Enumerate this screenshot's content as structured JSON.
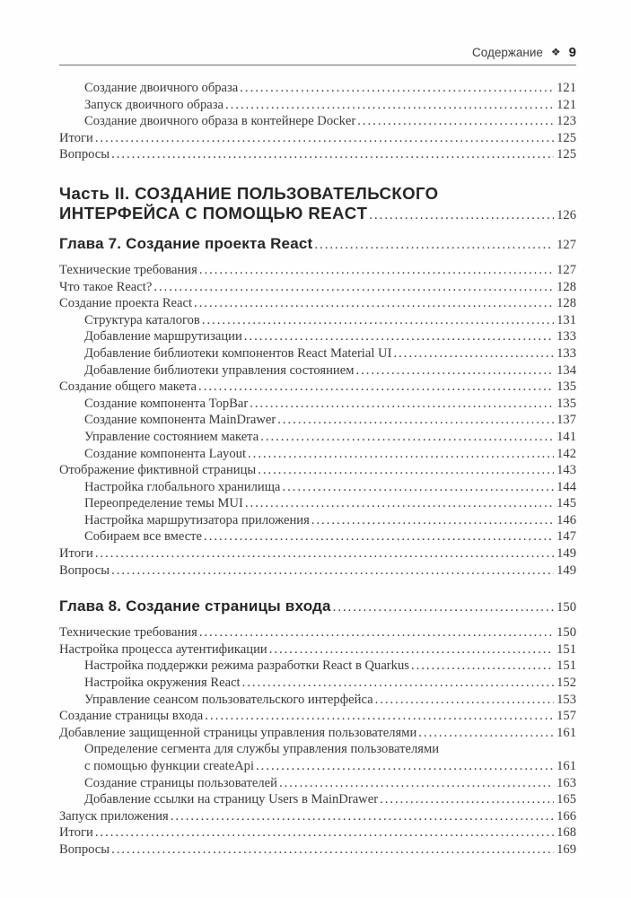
{
  "page": {
    "running_head": {
      "title": "Содержание",
      "ornament": "❖",
      "page_number": "9"
    },
    "ink_color": "#3a3a3a"
  },
  "toc_rows": [
    {
      "level": 1,
      "style": "body",
      "text": "Создание двоичного образа",
      "page": "121"
    },
    {
      "level": 1,
      "style": "body",
      "text": "Запуск двоичного образа",
      "page": "121"
    },
    {
      "level": 1,
      "style": "body",
      "text": "Создание двоичного образа в контейнере Docker",
      "page": "123"
    },
    {
      "level": 0,
      "style": "body",
      "text": "Итоги",
      "page": "125"
    },
    {
      "level": 0,
      "style": "body",
      "text": "Вопросы",
      "page": "125"
    },
    {
      "level": 0,
      "style": "part part-first",
      "text": "Часть II. СОЗДАНИЕ ПОЛЬЗОВАТЕЛЬСКОГО",
      "page": null
    },
    {
      "level": 0,
      "style": "part part-last",
      "text": "ИНТЕРФЕЙСА С ПОМОЩЬЮ REACT",
      "page": "126"
    },
    {
      "level": 0,
      "style": "chapter",
      "text": "Глава 7. Создание проекта React",
      "page": "127"
    },
    {
      "level": 0,
      "style": "body",
      "text": "Технические требования",
      "page": "127"
    },
    {
      "level": 0,
      "style": "body",
      "text": "Что такое React?",
      "page": "128"
    },
    {
      "level": 0,
      "style": "body",
      "text": "Создание проекта React",
      "page": "128"
    },
    {
      "level": 1,
      "style": "body",
      "text": "Структура каталогов",
      "page": "131"
    },
    {
      "level": 1,
      "style": "body",
      "text": "Добавление маршрутизации",
      "page": "133"
    },
    {
      "level": 1,
      "style": "body",
      "text": "Добавление библиотеки компонентов React Material UI",
      "page": "133"
    },
    {
      "level": 1,
      "style": "body",
      "text": "Добавление библиотеки управления состоянием",
      "page": "134"
    },
    {
      "level": 0,
      "style": "body",
      "text": "Создание общего макета",
      "page": "135"
    },
    {
      "level": 1,
      "style": "body",
      "text": "Создание компонента TopBar",
      "page": "135"
    },
    {
      "level": 1,
      "style": "body",
      "text": "Создание компонента MainDrawer",
      "page": "137"
    },
    {
      "level": 1,
      "style": "body",
      "text": "Управление состоянием макета",
      "page": "141"
    },
    {
      "level": 1,
      "style": "body",
      "text": "Создание компонента Layout",
      "page": "142"
    },
    {
      "level": 0,
      "style": "body",
      "text": "Отображение фиктивной страницы",
      "page": "143"
    },
    {
      "level": 1,
      "style": "body",
      "text": "Настройка глобального хранилища",
      "page": "144"
    },
    {
      "level": 1,
      "style": "body",
      "text": "Переопределение темы MUI",
      "page": "145"
    },
    {
      "level": 1,
      "style": "body",
      "text": "Настройка маршрутизатора приложения",
      "page": "146"
    },
    {
      "level": 1,
      "style": "body",
      "text": "Собираем все вместе",
      "page": "147"
    },
    {
      "level": 0,
      "style": "body",
      "text": "Итоги",
      "page": "149"
    },
    {
      "level": 0,
      "style": "body",
      "text": "Вопросы",
      "page": "149"
    },
    {
      "level": 0,
      "style": "chapter",
      "text": "Глава 8. Создание страницы входа",
      "page": "150"
    },
    {
      "level": 0,
      "style": "body",
      "text": "Технические требования",
      "page": "150"
    },
    {
      "level": 0,
      "style": "body",
      "text": "Настройка процесса аутентификации",
      "page": "151"
    },
    {
      "level": 1,
      "style": "body",
      "text": "Настройка поддержки режима разработки React в Quarkus",
      "page": "151"
    },
    {
      "level": 1,
      "style": "body",
      "text": "Настройка окружения React",
      "page": "152"
    },
    {
      "level": 1,
      "style": "body",
      "text": "Управление сеансом пользовательского интерфейса",
      "page": "153"
    },
    {
      "level": 0,
      "style": "body",
      "text": "Создание страницы входа",
      "page": "157"
    },
    {
      "level": 0,
      "style": "body",
      "text": "Добавление защищенной страницы управления пользователями",
      "page": "161"
    },
    {
      "level": 1,
      "style": "body",
      "text": "Определение сегмента для службы управления пользователями",
      "page": null
    },
    {
      "level": 1,
      "style": "body",
      "text": "с помощью функции createApi",
      "page": "161"
    },
    {
      "level": 1,
      "style": "body",
      "text": "Создание страницы пользователей",
      "page": "163"
    },
    {
      "level": 1,
      "style": "body",
      "text": "Добавление ссылки на страницу Users в MainDrawer",
      "page": "165"
    },
    {
      "level": 0,
      "style": "body",
      "text": "Запуск приложения",
      "page": "166"
    },
    {
      "level": 0,
      "style": "body",
      "text": "Итоги",
      "page": "168"
    },
    {
      "level": 0,
      "style": "body",
      "text": "Вопросы",
      "page": "169"
    }
  ]
}
